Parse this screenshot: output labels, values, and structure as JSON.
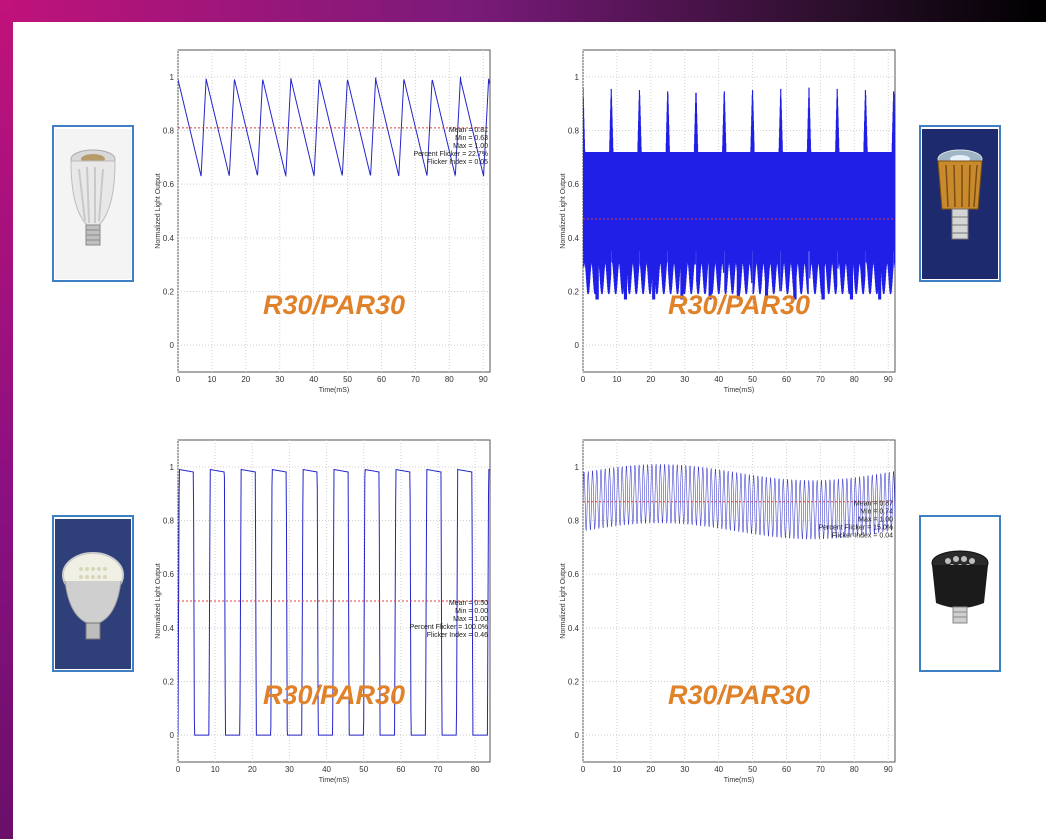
{
  "overlay_label": "R30/PAR30",
  "charts": [
    {
      "key": "p1",
      "mean_line": 0.81,
      "stats": [
        "Mean = 0.81",
        "Min = 0.63",
        "Max = 1.00",
        "Percent Flicker = 22.7%",
        "Flicker Index = 0.05"
      ]
    },
    {
      "key": "p2",
      "mean_line": 0.47,
      "stats": []
    },
    {
      "key": "p3",
      "mean_line": 0.5,
      "stats": [
        "Mean = 0.50",
        "Min = 0.00",
        "Max = 1.00",
        "Percent Flicker = 100.0%",
        "Flicker Index = 0.46"
      ]
    },
    {
      "key": "p4",
      "mean_line": 0.87,
      "stats": [
        "Mean = 0.87",
        "Min = 0.74",
        "Max = 1.00",
        "Percent Flicker = 15.0%",
        "Flicker Index = 0.04"
      ]
    }
  ],
  "chart_data": [
    {
      "type": "line",
      "xlabel": "Time(mS)",
      "ylabel": "Normalized Light Output",
      "xlim": [
        0,
        92
      ],
      "ylim": [
        -0.1,
        1.1
      ],
      "xticks": [
        0,
        10,
        20,
        30,
        40,
        50,
        60,
        70,
        80,
        90
      ],
      "yticks": [
        0,
        0.2,
        0.4,
        0.6,
        0.8,
        1
      ],
      "waveform": "sawtooth",
      "period_ms": 8.33,
      "x": [
        0,
        6.8,
        8.33,
        15.1,
        16.7,
        23.4,
        25.0,
        31.8,
        33.3,
        40.1,
        41.7,
        48.4,
        50.0,
        56.8,
        58.3,
        65.1,
        66.7,
        73.4,
        75.0,
        81.8,
        83.3,
        90.1,
        91.7
      ],
      "y": [
        0.99,
        0.63,
        1.0,
        0.63,
        1.0,
        0.63,
        1.0,
        0.63,
        1.0,
        0.63,
        1.0,
        0.63,
        1.0,
        0.63,
        1.0,
        0.63,
        1.0,
        0.63,
        1.0,
        0.63,
        1.0,
        0.63,
        1.0
      ],
      "mean": 0.81,
      "min": 0.63,
      "max": 1.0
    },
    {
      "type": "line",
      "xlabel": "Time(mS)",
      "ylabel": "Normalized Light Output",
      "xlim": [
        0,
        92
      ],
      "ylim": [
        -0.1,
        1.1
      ],
      "xticks": [
        0,
        10,
        20,
        30,
        40,
        50,
        60,
        70,
        80,
        90
      ],
      "yticks": [
        0,
        0.2,
        0.4,
        0.6,
        0.8,
        1
      ],
      "waveform": "high-frequency band with 120 Hz spikes",
      "period_ms": 8.33,
      "band": [
        0.25,
        0.72
      ],
      "spike_high": 0.96,
      "spike_low": 0.05,
      "mean": 0.47
    },
    {
      "type": "line",
      "xlabel": "Time(mS)",
      "ylabel": "Normalized Light Output",
      "xlim": [
        0,
        84
      ],
      "ylim": [
        -0.1,
        1.1
      ],
      "xticks": [
        0,
        10,
        20,
        30,
        40,
        50,
        60,
        70,
        80
      ],
      "yticks": [
        0,
        0.2,
        0.4,
        0.6,
        0.8,
        1
      ],
      "waveform": "square",
      "period_ms": 8.33,
      "on_fraction": 0.5,
      "mean": 0.5,
      "min": 0.0,
      "max": 1.0
    },
    {
      "type": "line",
      "xlabel": "Time(mS)",
      "ylabel": "Normalized Light Output",
      "xlim": [
        0,
        92
      ],
      "ylim": [
        -0.1,
        1.1
      ],
      "xticks": [
        0,
        10,
        20,
        30,
        40,
        50,
        60,
        70,
        80,
        90
      ],
      "yticks": [
        0,
        0.2,
        0.4,
        0.6,
        0.8,
        1
      ],
      "waveform": "fast ripple",
      "period_ms": 1.25,
      "range": [
        0.74,
        1.0
      ],
      "mean": 0.87,
      "min": 0.74,
      "max": 1.0
    }
  ]
}
